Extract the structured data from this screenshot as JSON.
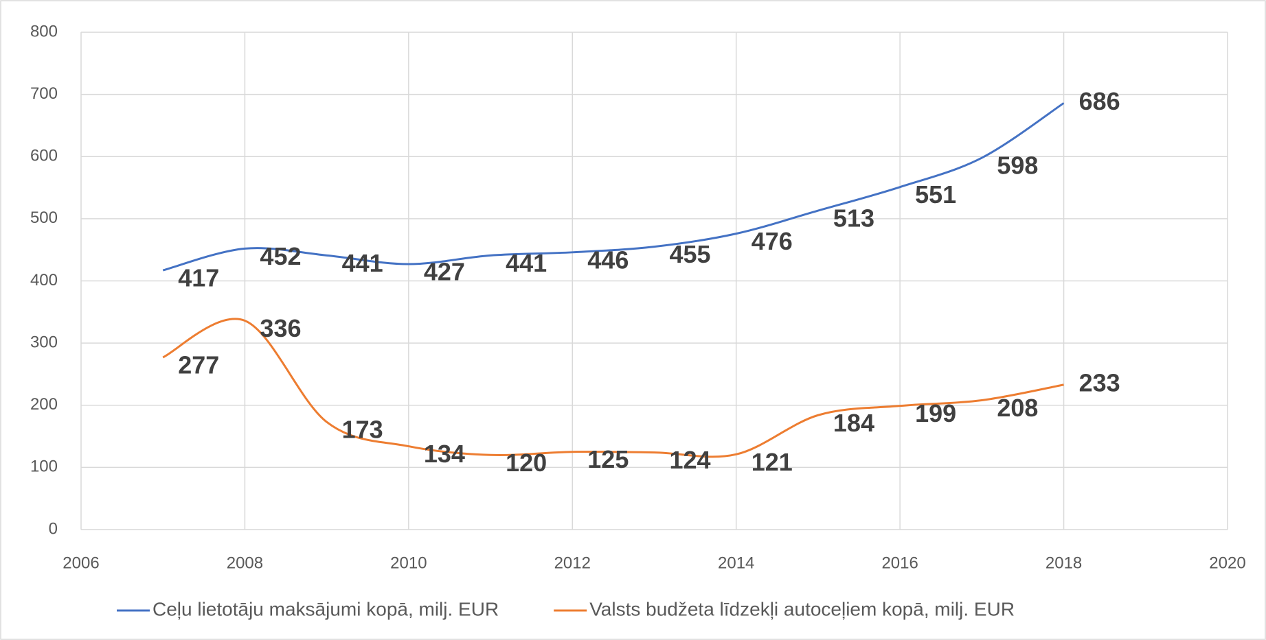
{
  "chart_data": {
    "type": "line",
    "x": [
      2007,
      2008,
      2009,
      2010,
      2011,
      2012,
      2013,
      2014,
      2015,
      2016,
      2017,
      2018
    ],
    "series": [
      {
        "name": "Ceļu lietotāju maksājumi kopā, milj. EUR",
        "color": "#4472c4",
        "values": [
          417,
          452,
          441,
          427,
          441,
          446,
          455,
          476,
          513,
          551,
          598,
          686
        ]
      },
      {
        "name": "Valsts budžeta līdzekļi autoceļiem kopā, milj. EUR",
        "color": "#ed7d31",
        "values": [
          277,
          336,
          173,
          134,
          120,
          125,
          124,
          121,
          184,
          199,
          208,
          233
        ]
      }
    ],
    "xlim": [
      2006,
      2020
    ],
    "xticks": [
      2006,
      2008,
      2010,
      2012,
      2014,
      2016,
      2018,
      2020
    ],
    "ylim": [
      0,
      800
    ],
    "yticks": [
      0,
      100,
      200,
      300,
      400,
      500,
      600,
      700,
      800
    ],
    "grid": true,
    "smooth": true,
    "legend": "bottom"
  }
}
